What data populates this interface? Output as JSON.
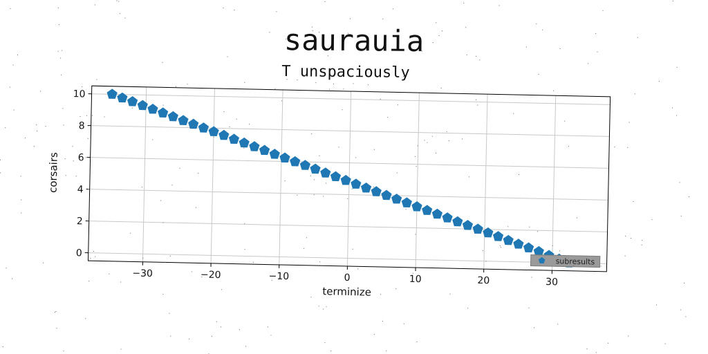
{
  "chart_data": {
    "type": "scatter",
    "title": "saurauia",
    "subtitle": "T unspaciously",
    "xlabel": "terminize",
    "ylabel": "corsairs",
    "xlim": [
      -38,
      38
    ],
    "ylim": [
      -0.5,
      10.5
    ],
    "x_ticks": [
      -30,
      -20,
      -10,
      0,
      10,
      20,
      30
    ],
    "x_tick_labels": [
      "−30",
      "−20",
      "−10",
      "0",
      "10",
      "20",
      "30"
    ],
    "y_ticks": [
      0,
      2,
      4,
      6,
      8,
      10
    ],
    "y_tick_labels": [
      "0",
      "2",
      "4",
      "6",
      "8",
      "10"
    ],
    "grid": true,
    "legend_position": "bottom-right",
    "marker": "pentagon",
    "series": [
      {
        "name": "subresults",
        "color": "#1f77b4",
        "x": [
          -35.0,
          -33.5,
          -32.0,
          -30.5,
          -29.0,
          -27.5,
          -26.0,
          -24.5,
          -23.0,
          -21.5,
          -20.0,
          -18.5,
          -17.0,
          -15.5,
          -14.0,
          -12.5,
          -11.0,
          -9.5,
          -8.0,
          -6.5,
          -5.0,
          -3.5,
          -2.0,
          -0.5,
          1.0,
          2.5,
          4.0,
          5.5,
          7.0,
          8.5,
          10.0,
          11.5,
          13.0,
          14.5,
          16.0,
          17.5,
          19.0,
          20.5,
          22.0,
          23.5,
          25.0,
          26.5,
          28.0,
          29.5,
          31.0,
          32.5
        ],
        "y": [
          10.0,
          9.78,
          9.56,
          9.33,
          9.11,
          8.89,
          8.67,
          8.44,
          8.22,
          8.0,
          7.78,
          7.56,
          7.33,
          7.11,
          6.89,
          6.67,
          6.44,
          6.22,
          6.0,
          5.78,
          5.56,
          5.33,
          5.11,
          4.89,
          4.67,
          4.44,
          4.22,
          4.0,
          3.78,
          3.56,
          3.33,
          3.11,
          2.89,
          2.67,
          2.44,
          2.22,
          2.0,
          1.78,
          1.56,
          1.33,
          1.11,
          0.89,
          0.67,
          0.44,
          0.22,
          0.0
        ]
      }
    ]
  }
}
